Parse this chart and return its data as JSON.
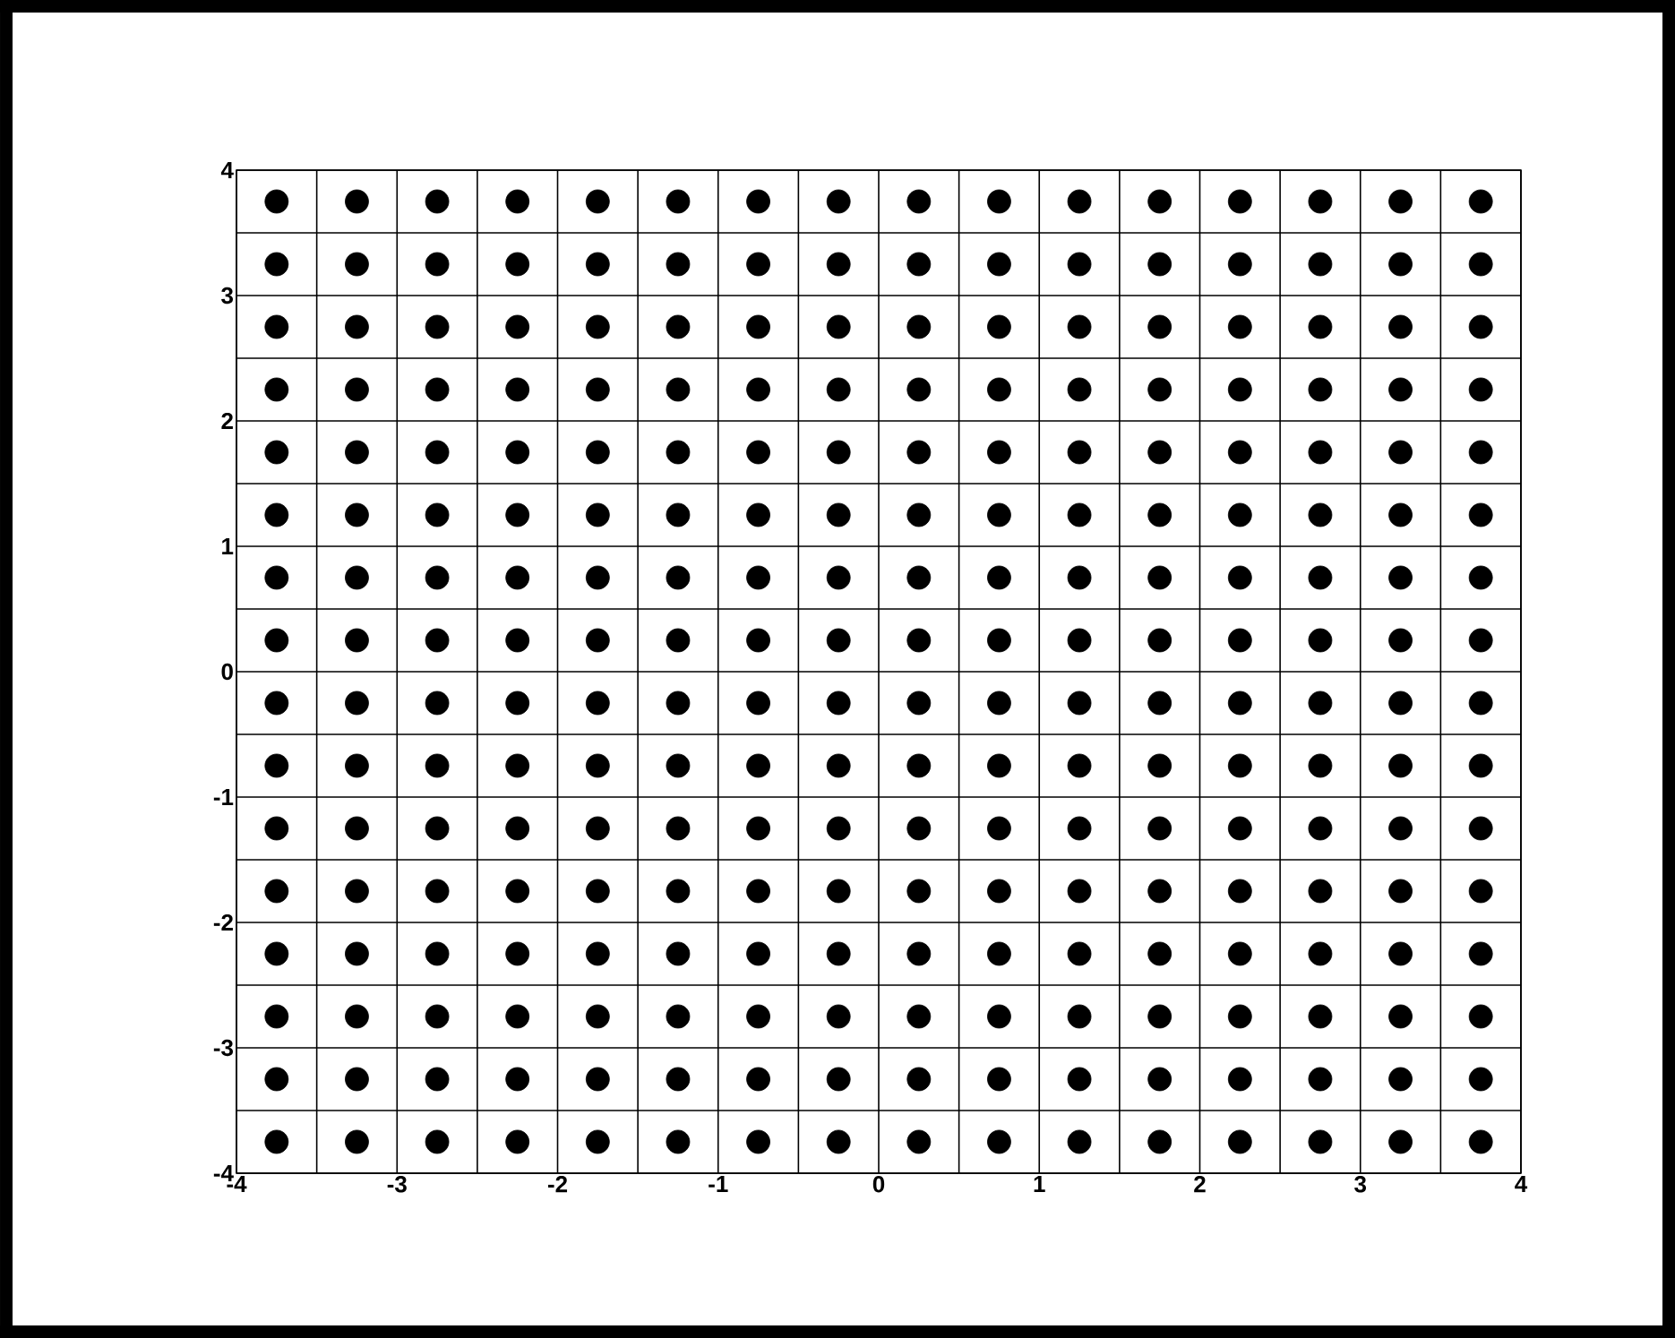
{
  "chart_data": {
    "type": "scatter",
    "color": "#000000",
    "marker": "circle",
    "grid": true,
    "xlim": [
      -4,
      4
    ],
    "ylim": [
      -4,
      4
    ],
    "xticks": [
      -4,
      {
        "value": -3.5,
        "label": null
      },
      -3,
      {
        "value": -2.5,
        "label": null
      },
      -2,
      {
        "value": -1.5,
        "label": null
      },
      -1,
      {
        "value": -0.5,
        "label": null
      },
      0,
      {
        "value": 0.5,
        "label": null
      },
      1,
      {
        "value": 1.5,
        "label": null
      },
      2,
      {
        "value": 2.5,
        "label": null
      },
      3,
      {
        "value": 3.5,
        "label": null
      },
      4
    ],
    "yticks": [
      -4,
      {
        "value": -3.5,
        "label": null
      },
      -3,
      {
        "value": -2.5,
        "label": null
      },
      -2,
      {
        "value": -1.5,
        "label": null
      },
      -1,
      {
        "value": -0.5,
        "label": null
      },
      0,
      {
        "value": 0.5,
        "label": null
      },
      1,
      {
        "value": 1.5,
        "label": null
      },
      2,
      {
        "value": 2.5,
        "label": null
      },
      3,
      {
        "value": 3.5,
        "label": null
      },
      4
    ],
    "x": [
      -3.75,
      -3.25,
      -2.75,
      -2.25,
      -1.75,
      -1.25,
      -0.75,
      -0.25,
      0.25,
      0.75,
      1.25,
      1.75,
      2.25,
      2.75,
      3.25,
      3.75,
      -3.75,
      -3.25,
      -2.75,
      -2.25,
      -1.75,
      -1.25,
      -0.75,
      -0.25,
      0.25,
      0.75,
      1.25,
      1.75,
      2.25,
      2.75,
      3.25,
      3.75,
      -3.75,
      -3.25,
      -2.75,
      -2.25,
      -1.75,
      -1.25,
      -0.75,
      -0.25,
      0.25,
      0.75,
      1.25,
      1.75,
      2.25,
      2.75,
      3.25,
      3.75,
      -3.75,
      -3.25,
      -2.75,
      -2.25,
      -1.75,
      -1.25,
      -0.75,
      -0.25,
      0.25,
      0.75,
      1.25,
      1.75,
      2.25,
      2.75,
      3.25,
      3.75,
      -3.75,
      -3.25,
      -2.75,
      -2.25,
      -1.75,
      -1.25,
      -0.75,
      -0.25,
      0.25,
      0.75,
      1.25,
      1.75,
      2.25,
      2.75,
      3.25,
      3.75,
      -3.75,
      -3.25,
      -2.75,
      -2.25,
      -1.75,
      -1.25,
      -0.75,
      -0.25,
      0.25,
      0.75,
      1.25,
      1.75,
      2.25,
      2.75,
      3.25,
      3.75,
      -3.75,
      -3.25,
      -2.75,
      -2.25,
      -1.75,
      -1.25,
      -0.75,
      -0.25,
      0.25,
      0.75,
      1.25,
      1.75,
      2.25,
      2.75,
      3.25,
      3.75,
      -3.75,
      -3.25,
      -2.75,
      -2.25,
      -1.75,
      -1.25,
      -0.75,
      -0.25,
      0.25,
      0.75,
      1.25,
      1.75,
      2.25,
      2.75,
      3.25,
      3.75,
      -3.75,
      -3.25,
      -2.75,
      -2.25,
      -1.75,
      -1.25,
      -0.75,
      -0.25,
      0.25,
      0.75,
      1.25,
      1.75,
      2.25,
      2.75,
      3.25,
      3.75,
      -3.75,
      -3.25,
      -2.75,
      -2.25,
      -1.75,
      -1.25,
      -0.75,
      -0.25,
      0.25,
      0.75,
      1.25,
      1.75,
      2.25,
      2.75,
      3.25,
      3.75,
      -3.75,
      -3.25,
      -2.75,
      -2.25,
      -1.75,
      -1.25,
      -0.75,
      -0.25,
      0.25,
      0.75,
      1.25,
      1.75,
      2.25,
      2.75,
      3.25,
      3.75,
      -3.75,
      -3.25,
      -2.75,
      -2.25,
      -1.75,
      -1.25,
      -0.75,
      -0.25,
      0.25,
      0.75,
      1.25,
      1.75,
      2.25,
      2.75,
      3.25,
      3.75,
      -3.75,
      -3.25,
      -2.75,
      -2.25,
      -1.75,
      -1.25,
      -0.75,
      -0.25,
      0.25,
      0.75,
      1.25,
      1.75,
      2.25,
      2.75,
      3.25,
      3.75,
      -3.75,
      -3.25,
      -2.75,
      -2.25,
      -1.75,
      -1.25,
      -0.75,
      -0.25,
      0.25,
      0.75,
      1.25,
      1.75,
      2.25,
      2.75,
      3.25,
      3.75,
      -3.75,
      -3.25,
      -2.75,
      -2.25,
      -1.75,
      -1.25,
      -0.75,
      -0.25,
      0.25,
      0.75,
      1.25,
      1.75,
      2.25,
      2.75,
      3.25,
      3.75,
      -3.75,
      -3.25,
      -2.75,
      -2.25,
      -1.75,
      -1.25,
      -0.75,
      -0.25,
      0.25,
      0.75,
      1.25,
      1.75,
      2.25,
      2.75,
      3.25,
      3.75
    ],
    "values": [
      3.75,
      3.75,
      3.75,
      3.75,
      3.75,
      3.75,
      3.75,
      3.75,
      3.75,
      3.75,
      3.75,
      3.75,
      3.75,
      3.75,
      3.75,
      3.75,
      3.25,
      3.25,
      3.25,
      3.25,
      3.25,
      3.25,
      3.25,
      3.25,
      3.25,
      3.25,
      3.25,
      3.25,
      3.25,
      3.25,
      3.25,
      3.25,
      2.75,
      2.75,
      2.75,
      2.75,
      2.75,
      2.75,
      2.75,
      2.75,
      2.75,
      2.75,
      2.75,
      2.75,
      2.75,
      2.75,
      2.75,
      2.75,
      2.25,
      2.25,
      2.25,
      2.25,
      2.25,
      2.25,
      2.25,
      2.25,
      2.25,
      2.25,
      2.25,
      2.25,
      2.25,
      2.25,
      2.25,
      2.25,
      1.75,
      1.75,
      1.75,
      1.75,
      1.75,
      1.75,
      1.75,
      1.75,
      1.75,
      1.75,
      1.75,
      1.75,
      1.75,
      1.75,
      1.75,
      1.75,
      1.25,
      1.25,
      1.25,
      1.25,
      1.25,
      1.25,
      1.25,
      1.25,
      1.25,
      1.25,
      1.25,
      1.25,
      1.25,
      1.25,
      1.25,
      1.25,
      0.75,
      0.75,
      0.75,
      0.75,
      0.75,
      0.75,
      0.75,
      0.75,
      0.75,
      0.75,
      0.75,
      0.75,
      0.75,
      0.75,
      0.75,
      0.75,
      0.25,
      0.25,
      0.25,
      0.25,
      0.25,
      0.25,
      0.25,
      0.25,
      0.25,
      0.25,
      0.25,
      0.25,
      0.25,
      0.25,
      0.25,
      0.25,
      -0.25,
      -0.25,
      -0.25,
      -0.25,
      -0.25,
      -0.25,
      -0.25,
      -0.25,
      -0.25,
      -0.25,
      -0.25,
      -0.25,
      -0.25,
      -0.25,
      -0.25,
      -0.25,
      -0.75,
      -0.75,
      -0.75,
      -0.75,
      -0.75,
      -0.75,
      -0.75,
      -0.75,
      -0.75,
      -0.75,
      -0.75,
      -0.75,
      -0.75,
      -0.75,
      -0.75,
      -0.75,
      -1.25,
      -1.25,
      -1.25,
      -1.25,
      -1.25,
      -1.25,
      -1.25,
      -1.25,
      -1.25,
      -1.25,
      -1.25,
      -1.25,
      -1.25,
      -1.25,
      -1.25,
      -1.25,
      -1.75,
      -1.75,
      -1.75,
      -1.75,
      -1.75,
      -1.75,
      -1.75,
      -1.75,
      -1.75,
      -1.75,
      -1.75,
      -1.75,
      -1.75,
      -1.75,
      -1.75,
      -1.75,
      -2.25,
      -2.25,
      -2.25,
      -2.25,
      -2.25,
      -2.25,
      -2.25,
      -2.25,
      -2.25,
      -2.25,
      -2.25,
      -2.25,
      -2.25,
      -2.25,
      -2.25,
      -2.25,
      -2.75,
      -2.75,
      -2.75,
      -2.75,
      -2.75,
      -2.75,
      -2.75,
      -2.75,
      -2.75,
      -2.75,
      -2.75,
      -2.75,
      -2.75,
      -2.75,
      -2.75,
      -2.75,
      -3.25,
      -3.25,
      -3.25,
      -3.25,
      -3.25,
      -3.25,
      -3.25,
      -3.25,
      -3.25,
      -3.25,
      -3.25,
      -3.25,
      -3.25,
      -3.25,
      -3.25,
      -3.25,
      -3.75,
      -3.75,
      -3.75,
      -3.75,
      -3.75,
      -3.75,
      -3.75,
      -3.75,
      -3.75,
      -3.75,
      -3.75,
      -3.75,
      -3.75,
      -3.75,
      -3.75,
      -3.75
    ]
  }
}
